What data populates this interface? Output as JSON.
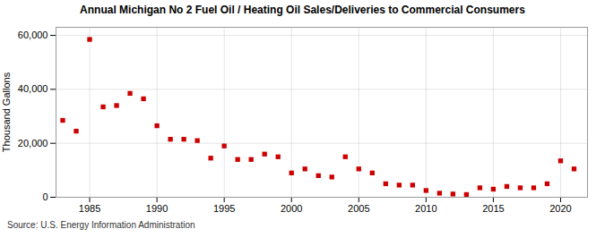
{
  "chart_data": {
    "type": "scatter",
    "title": "Annual Michigan No 2 Fuel Oil / Heating Oil Sales/Deliveries to Commercial Consumers",
    "ylabel": "Thousand Gallons",
    "caption": "Source: U.S. Energy Information Administration",
    "x": [
      1983,
      1984,
      1985,
      1986,
      1987,
      1988,
      1989,
      1990,
      1991,
      1992,
      1993,
      1994,
      1995,
      1996,
      1997,
      1998,
      1999,
      2000,
      2001,
      2002,
      2003,
      2004,
      2005,
      2006,
      2007,
      2008,
      2009,
      2010,
      2011,
      2012,
      2013,
      2014,
      2015,
      2016,
      2017,
      2018,
      2019,
      2020,
      2021
    ],
    "values": [
      28500,
      24500,
      58500,
      33500,
      34000,
      38500,
      36500,
      26500,
      21500,
      21500,
      21000,
      14500,
      19000,
      14000,
      14000,
      16000,
      15000,
      9000,
      10500,
      8000,
      7500,
      15000,
      10500,
      9000,
      5000,
      4500,
      4500,
      2500,
      1500,
      1200,
      1000,
      3500,
      3000,
      4000,
      3500,
      3500,
      5000,
      13500,
      10500
    ],
    "color": "#cc0000",
    "marker": "square",
    "xlim": [
      1982.5,
      2022
    ],
    "xticks": [
      1985,
      1990,
      1995,
      2000,
      2005,
      2010,
      2015,
      2020
    ],
    "ylim": [
      0,
      63000
    ],
    "yticks": [
      0,
      {
        "value": 20000,
        "label": "20,000"
      },
      {
        "value": 40000,
        "label": "40,000"
      },
      {
        "value": 60000,
        "label": "60,000"
      }
    ],
    "grid": true
  }
}
